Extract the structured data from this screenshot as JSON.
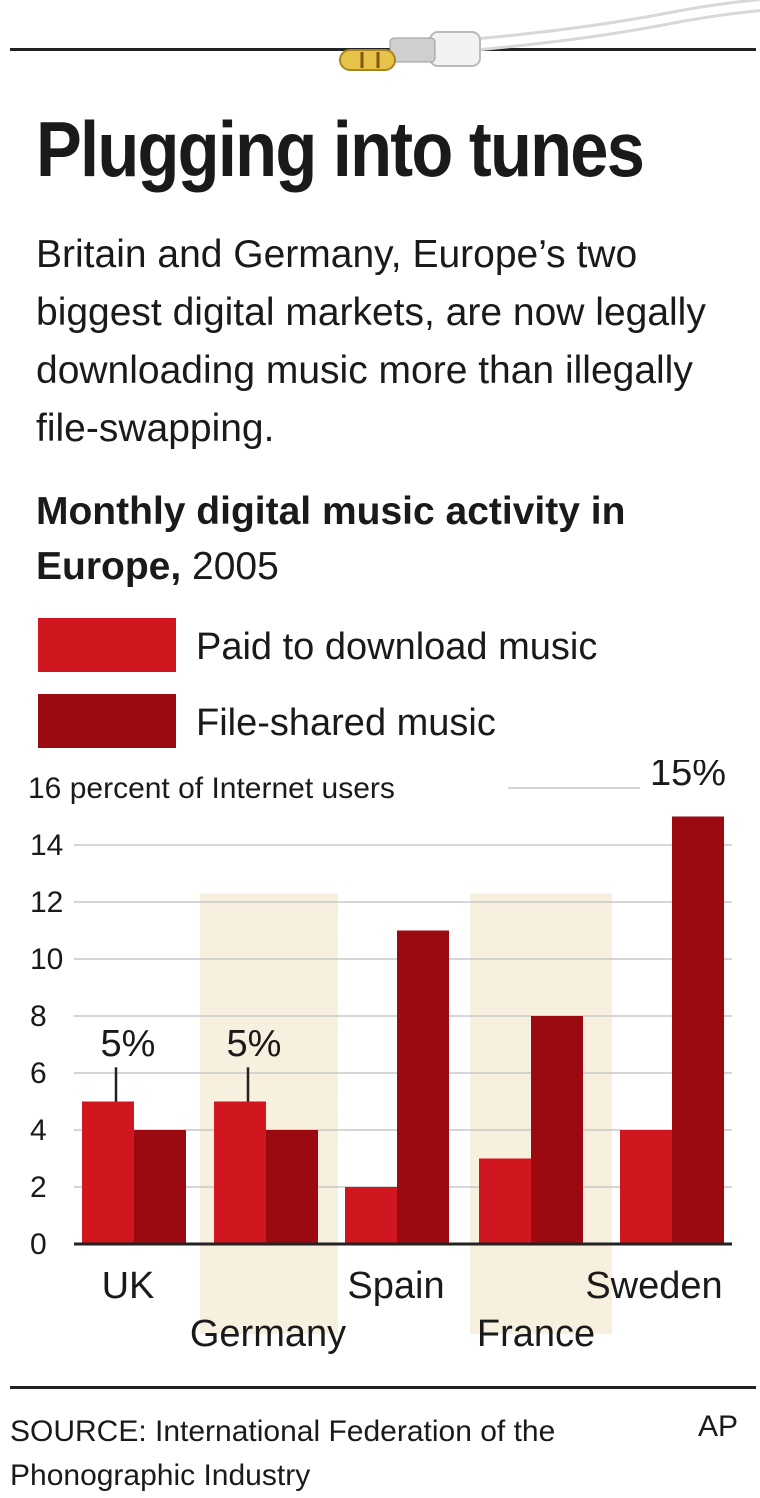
{
  "headline": "Plugging into tunes",
  "subhead": "Britain and Germany, Europe’s two biggest digital markets, are now legally downloading music more than illegally file-swapping.",
  "chart_title_bold": "Monthly digital music activity in Europe,",
  "chart_title_year": " 2005",
  "legend": [
    {
      "label": "Paid to download music",
      "color": "#d0161f"
    },
    {
      "label": "File-shared music",
      "color": "#9a0a10"
    }
  ],
  "source": "SOURCE: International Federation of the Phonographic Industry",
  "credit": "AP",
  "chart_data": {
    "type": "bar",
    "categories": [
      "UK",
      "Germany",
      "Spain",
      "France",
      "Sweden"
    ],
    "series": [
      {
        "name": "Paid to download music",
        "values": [
          5,
          5,
          2,
          3,
          4
        ],
        "color": "#d0161f"
      },
      {
        "name": "File-shared music",
        "values": [
          4,
          4,
          11,
          8,
          15
        ],
        "color": "#9a0a10"
      }
    ],
    "ylim": [
      0,
      16
    ],
    "yticks": [
      0,
      2,
      4,
      6,
      8,
      10,
      12,
      14,
      16
    ],
    "ylabel": "percent of Internet users",
    "annotations": [
      "5%",
      "5%",
      "15%"
    ],
    "shaded_categories": [
      "Germany",
      "France"
    ],
    "shade_color": "#f7f0de"
  }
}
